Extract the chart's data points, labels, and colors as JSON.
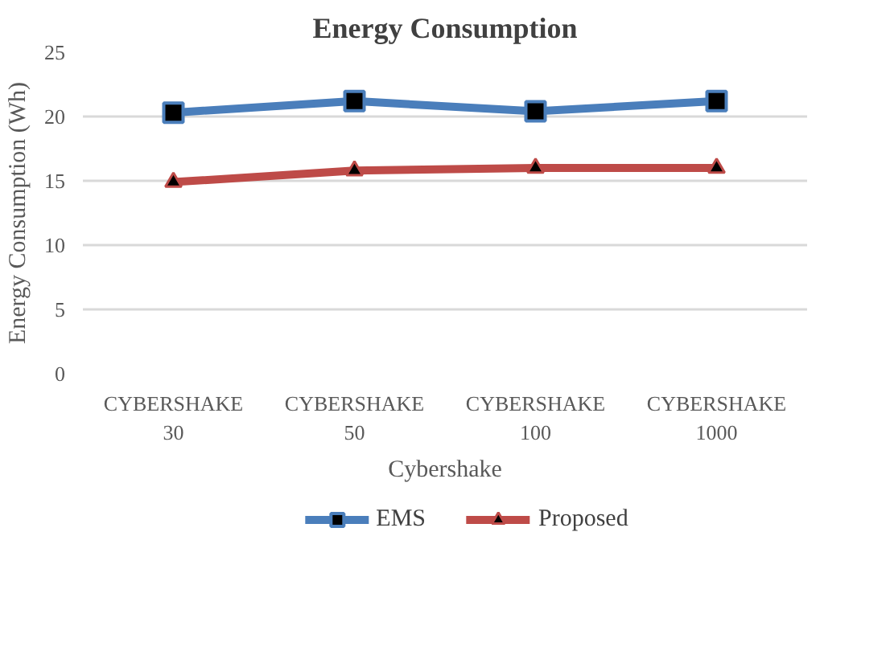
{
  "chart_data": {
    "type": "line",
    "title": "Energy Consumption",
    "xlabel": "Cybershake",
    "ylabel": "Energy Consumption (Wh)",
    "categories": [
      "CYBERSHAKE\n30",
      "CYBERSHAKE\n50",
      "CYBERSHAKE\n100",
      "CYBERSHAKE\n1000"
    ],
    "series": [
      {
        "name": "EMS",
        "color": "#4a7ebb",
        "marker": "square",
        "values": [
          20.3,
          21.2,
          20.4,
          21.2
        ]
      },
      {
        "name": "Proposed",
        "color": "#be4b48",
        "marker": "triangle",
        "values": [
          14.9,
          15.8,
          16.0,
          16.0
        ]
      }
    ],
    "ylim": [
      0,
      25
    ],
    "yticks": [
      0,
      5,
      10,
      15,
      20,
      25
    ],
    "grid": "y",
    "legend": "bottom"
  }
}
